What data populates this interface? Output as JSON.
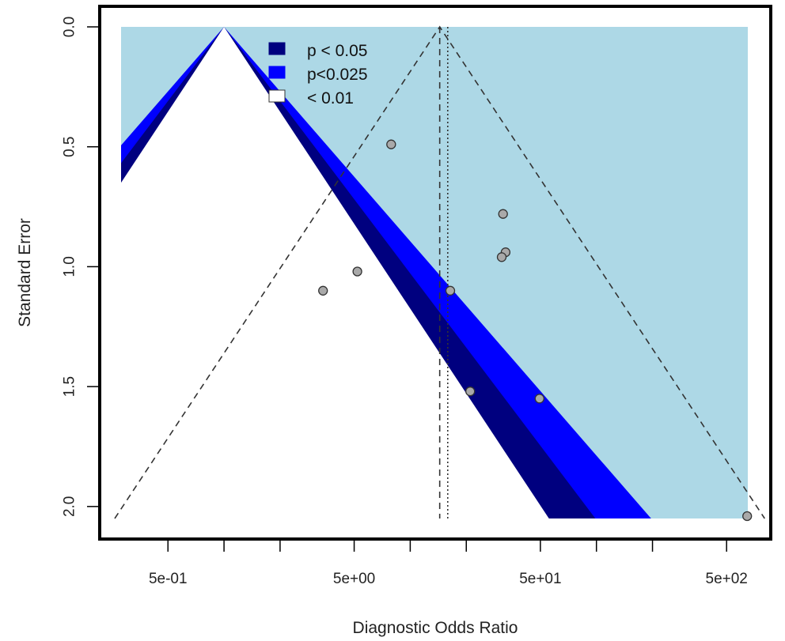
{
  "chart_data": {
    "type": "scatter",
    "title": "",
    "xlabel": "Diagnostic Odds Ratio",
    "ylabel": "Standard Error",
    "x_scale": "log",
    "y_inverted": true,
    "xlim": [
      0.28,
      650
    ],
    "ylim": [
      0,
      2.05
    ],
    "x_ticks": [
      0.5,
      1,
      2,
      5,
      10,
      20,
      50,
      100,
      200,
      500
    ],
    "x_tick_labels": [
      {
        "value": 0.5,
        "label": "5e-01"
      },
      {
        "value": 5,
        "label": "5e+00"
      },
      {
        "value": 50,
        "label": "5e+01"
      },
      {
        "value": 500,
        "label": "5e+02"
      }
    ],
    "y_ticks": [
      0.0,
      0.5,
      1.0,
      1.5,
      2.0
    ],
    "y_tick_labels": [
      "0.0",
      "0.5",
      "1.0",
      "1.5",
      "2.0"
    ],
    "contour_apex": 1.0,
    "contours": [
      {
        "name": "p < 0.05",
        "z": 1.96,
        "color": "#00007f"
      },
      {
        "name": "p<0.025",
        "z": 2.24,
        "color": "#0000ff"
      },
      {
        "name": "< 0.01",
        "z": 2.576,
        "color": "#ffffff"
      }
    ],
    "background_color": "#add8e6",
    "funnel": {
      "center": 14.4,
      "z": 1.96
    },
    "reference_lines": [
      {
        "style": "dashed",
        "x": 14.4
      },
      {
        "style": "dotted",
        "x": 15.9
      }
    ],
    "legend_position": "top-center",
    "points": [
      {
        "x": 7.9,
        "y": 0.49
      },
      {
        "x": 3.4,
        "y": 1.1
      },
      {
        "x": 5.2,
        "y": 1.02
      },
      {
        "x": 16.4,
        "y": 1.1
      },
      {
        "x": 31.5,
        "y": 0.78
      },
      {
        "x": 32.5,
        "y": 0.94
      },
      {
        "x": 31.0,
        "y": 0.96
      },
      {
        "x": 21.0,
        "y": 1.52
      },
      {
        "x": 49.5,
        "y": 1.55
      },
      {
        "x": 645,
        "y": 2.04
      }
    ]
  }
}
